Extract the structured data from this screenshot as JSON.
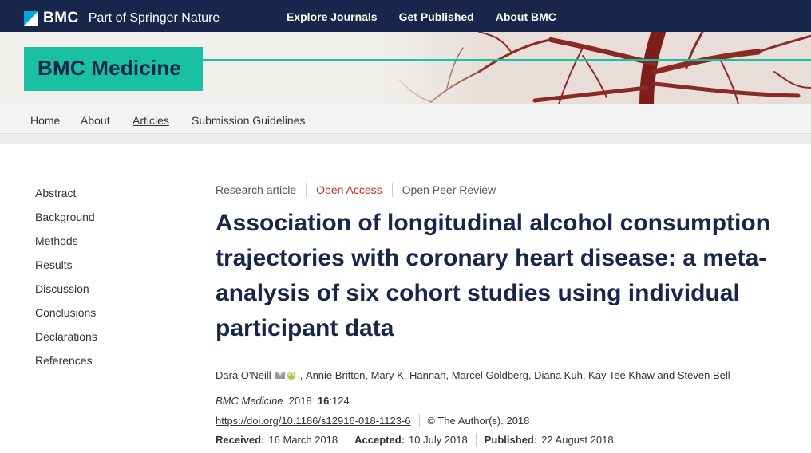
{
  "topbar": {
    "brand_name": "BMC",
    "brand_sub": "Part of Springer Nature",
    "nav": [
      "Explore Journals",
      "Get Published",
      "About BMC"
    ]
  },
  "journal": {
    "title": "BMC Medicine"
  },
  "subnav": {
    "items": [
      "Home",
      "About",
      "Articles",
      "Submission Guidelines"
    ],
    "active": "Articles"
  },
  "sidebar": {
    "items": [
      "Abstract",
      "Background",
      "Methods",
      "Results",
      "Discussion",
      "Conclusions",
      "Declarations",
      "References"
    ]
  },
  "article": {
    "type": "Research article",
    "access": "Open Access",
    "review": "Open Peer Review",
    "title": "Association of longitudinal alcohol consumption trajectories with coronary heart disease: a meta-analysis of six cohort studies using individual participant data",
    "authors": [
      "Dara O'Neill",
      "Annie Britton",
      "Mary K. Hannah",
      "Marcel Goldberg",
      "Diana Kuh",
      "Kay Tee Khaw"
    ],
    "authors_and": "and",
    "authors_last": "Steven Bell",
    "journal": "BMC Medicine",
    "year": "2018",
    "volume": "16",
    "article_no": ":124",
    "doi": "https://doi.org/10.1186/s12916-018-1123-6",
    "copyright": "©  The Author(s). 2018",
    "received_label": "Received:",
    "received": "16 March 2018",
    "accepted_label": "Accepted:",
    "accepted": "10 July 2018",
    "published_label": "Published:",
    "published": "22 August 2018"
  },
  "colors": {
    "navy": "#17264a",
    "teal": "#19c0a1",
    "open_access": "#c52d1e"
  }
}
